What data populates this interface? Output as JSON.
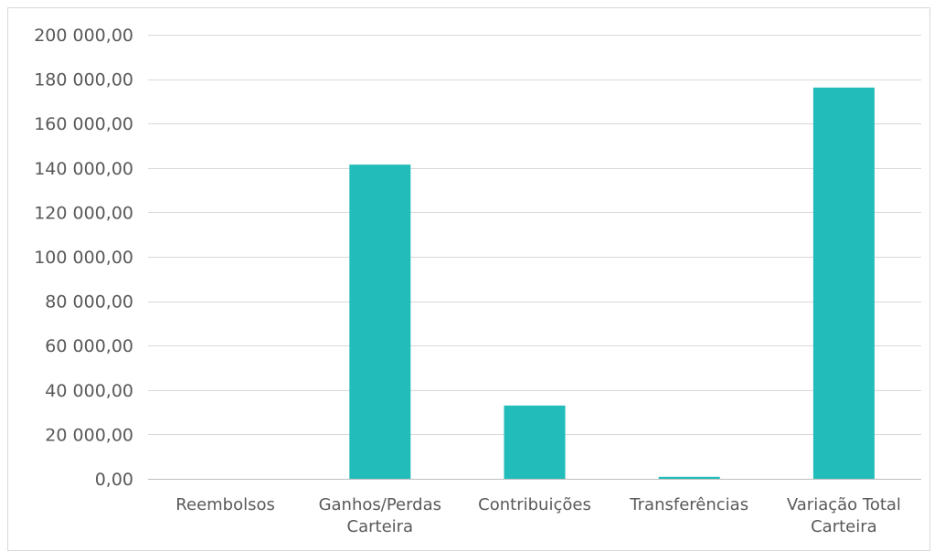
{
  "chart_data": {
    "type": "bar",
    "title": "",
    "xlabel": "",
    "ylabel": "",
    "categories": [
      [
        "Reembolsos"
      ],
      [
        "Ganhos/Perdas",
        "Carteira"
      ],
      [
        "Contribuições"
      ],
      [
        "Transferências"
      ],
      [
        "Variação Total",
        "Carteira"
      ]
    ],
    "values": [
      0,
      141500,
      33000,
      900,
      176200
    ],
    "ylim": [
      0,
      200000
    ],
    "y_ticks": [
      {
        "value": 0,
        "label": "0,00"
      },
      {
        "value": 20000,
        "label": "20 000,00"
      },
      {
        "value": 40000,
        "label": "40 000,00"
      },
      {
        "value": 60000,
        "label": "60 000,00"
      },
      {
        "value": 80000,
        "label": "80 000,00"
      },
      {
        "value": 100000,
        "label": "100 000,00"
      },
      {
        "value": 120000,
        "label": "120 000,00"
      },
      {
        "value": 140000,
        "label": "140 000,00"
      },
      {
        "value": 160000,
        "label": "160 000,00"
      },
      {
        "value": 180000,
        "label": "180 000,00"
      },
      {
        "value": 200000,
        "label": "200 000,00"
      }
    ],
    "grid": true,
    "legend": "none",
    "colors": {
      "bar": "#22bcba",
      "grid": "#d9d9d9",
      "axis": "#bfbfbf",
      "text": "#595959"
    }
  }
}
